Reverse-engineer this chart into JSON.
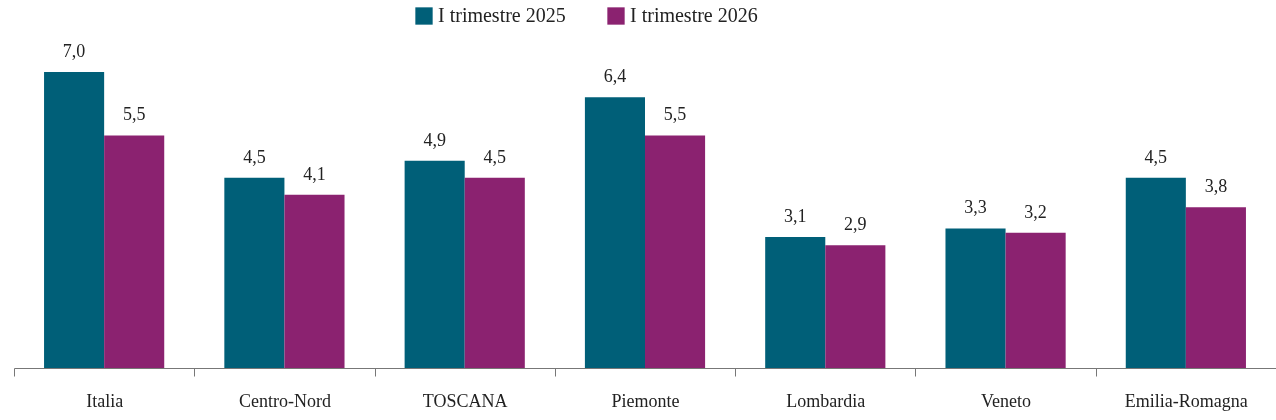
{
  "chart_data": {
    "type": "bar",
    "categories": [
      "Italia",
      "Centro-Nord",
      "TOSCANA",
      "Piemonte",
      "Lombardia",
      "Veneto",
      "Emilia-Romagna"
    ],
    "series": [
      {
        "name": "I trimestre 2025",
        "color": "#005f78",
        "values": [
          7.0,
          4.5,
          4.9,
          6.4,
          3.1,
          3.3,
          4.5
        ],
        "value_labels": [
          "7,0",
          "4,5",
          "4,9",
          "6,4",
          "3,1",
          "3,3",
          "4,5"
        ]
      },
      {
        "name": "I trimestre 2026",
        "color": "#8b2270",
        "values": [
          5.5,
          4.1,
          4.5,
          5.5,
          2.9,
          3.2,
          3.8
        ],
        "value_labels": [
          "5,5",
          "4,1",
          "4,5",
          "5,5",
          "2,9",
          "3,2",
          "3,8"
        ]
      }
    ],
    "legend": "top",
    "tick_labels": "x",
    "grid": false
  }
}
